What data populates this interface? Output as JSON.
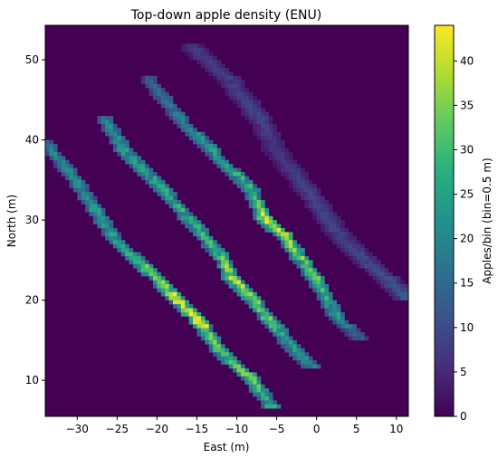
{
  "chart_data": {
    "type": "heatmap",
    "title": "Top-down apple density (ENU)",
    "xlabel": "East (m)",
    "ylabel": "North (m)",
    "xlim": [
      -34,
      11.5
    ],
    "ylim": [
      5.5,
      54.3
    ],
    "xticks": [
      -30,
      -25,
      -20,
      -15,
      -10,
      -5,
      0,
      5,
      10
    ],
    "yticks": [
      10,
      20,
      30,
      40,
      50
    ],
    "xtick_labels": [
      "−30",
      "−25",
      "−20",
      "−15",
      "−10",
      "−5",
      "0",
      "5",
      "10"
    ],
    "ytick_labels": [
      "10",
      "20",
      "30",
      "40",
      "50"
    ],
    "bin_size_m": 0.5,
    "colormap": "viridis",
    "colorbar": {
      "label": "Apples/bin (bin=0.5 m)",
      "range": [
        0,
        44
      ],
      "ticks": [
        0,
        5,
        10,
        15,
        20,
        25,
        30,
        35,
        40
      ],
      "tick_labels": [
        "0",
        "5",
        "10",
        "15",
        "20",
        "25",
        "30",
        "35",
        "40"
      ]
    },
    "background_value": 0,
    "series": [
      {
        "points": [
          [
            -34,
            39.6
          ],
          [
            -30,
            34.7
          ],
          [
            -25,
            27.2
          ],
          [
            -20,
            22.8
          ],
          [
            -18,
            20.5
          ],
          [
            -15,
            17.8
          ],
          [
            -12,
            13.5
          ],
          [
            -8.5,
            10.5
          ],
          [
            -5.5,
            6.5
          ]
        ],
        "values": [
          20,
          22,
          26,
          36,
          40,
          42,
          30,
          36,
          26
        ],
        "width": 0.8
      },
      {
        "points": [
          [
            -26.5,
            42.5
          ],
          [
            -24,
            38.5
          ],
          [
            -20,
            34.5
          ],
          [
            -15,
            29.0
          ],
          [
            -12,
            25.5
          ],
          [
            -10.5,
            22.5
          ],
          [
            -8,
            20.0
          ],
          [
            -5,
            16.5
          ],
          [
            -3,
            14.0
          ],
          [
            -0.5,
            11.5
          ]
        ],
        "values": [
          20,
          24,
          26,
          28,
          32,
          40,
          36,
          30,
          24,
          20
        ],
        "width": 0.8
      },
      {
        "points": [
          [
            -21,
            47.5
          ],
          [
            -17,
            42.5
          ],
          [
            -13,
            38.5
          ],
          [
            -8,
            33.5
          ],
          [
            -6.5,
            30.0
          ],
          [
            -4,
            28.0
          ],
          [
            0,
            22.5
          ],
          [
            2.5,
            18.0
          ],
          [
            5.5,
            15.0
          ]
        ],
        "values": [
          14,
          18,
          24,
          26,
          38,
          34,
          30,
          22,
          10
        ],
        "width": 0.9
      },
      {
        "points": [
          [
            -15.5,
            51.5
          ],
          [
            -11,
            47.5
          ],
          [
            -7,
            42.5
          ],
          [
            -5,
            38.5
          ],
          [
            -1,
            33.5
          ],
          [
            3,
            28.0
          ],
          [
            6,
            25.0
          ],
          [
            9,
            22.5
          ],
          [
            11.3,
            20.3
          ]
        ],
        "values": [
          7,
          8,
          9,
          6,
          9,
          8,
          9,
          10,
          12
        ],
        "width": 1.3
      }
    ]
  }
}
